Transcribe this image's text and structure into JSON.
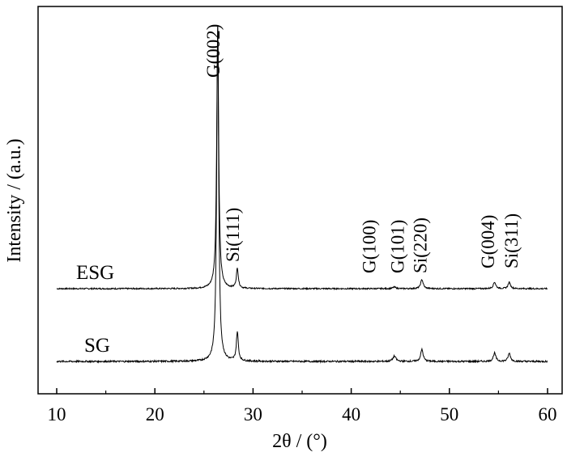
{
  "chart_data": {
    "type": "line",
    "xlabel": "2θ / (°)",
    "ylabel": "Intensity / (a.u.)",
    "xlim": [
      8,
      61
    ],
    "x_ticks": [
      10,
      20,
      30,
      40,
      50,
      60
    ],
    "y_ticks_labeled": false,
    "grid": false,
    "legend": "none",
    "series": [
      {
        "name": "ESG",
        "baseline": 0,
        "peaks": [
          {
            "x": 26.4,
            "height": 100,
            "width": 0.12
          },
          {
            "x": 28.4,
            "height": 7.5,
            "width": 0.12
          },
          {
            "x": 44.4,
            "height": 0.6,
            "width": 0.18
          },
          {
            "x": 47.2,
            "height": 3.5,
            "width": 0.15
          },
          {
            "x": 54.6,
            "height": 2.5,
            "width": 0.15
          },
          {
            "x": 56.1,
            "height": 2.4,
            "width": 0.15
          }
        ]
      },
      {
        "name": "SG",
        "baseline": 0,
        "peaks": [
          {
            "x": 26.4,
            "height": 100,
            "width": 0.12
          },
          {
            "x": 28.4,
            "height": 8.6,
            "width": 0.12
          },
          {
            "x": 44.4,
            "height": 1.6,
            "width": 0.18
          },
          {
            "x": 47.2,
            "height": 3.6,
            "width": 0.15
          },
          {
            "x": 54.6,
            "height": 2.5,
            "width": 0.15
          },
          {
            "x": 56.1,
            "height": 2.4,
            "width": 0.15
          }
        ]
      }
    ],
    "annotations": [
      {
        "text": "G(002)",
        "x": 26.4
      },
      {
        "text": "Si(111)",
        "x": 28.4
      },
      {
        "text": "G(100)",
        "x": 42.3
      },
      {
        "text": "G(101)",
        "x": 45.2
      },
      {
        "text": "Si(220)",
        "x": 47.5
      },
      {
        "text": "G(004)",
        "x": 54.4
      },
      {
        "text": "Si(311)",
        "x": 56.8
      }
    ]
  }
}
